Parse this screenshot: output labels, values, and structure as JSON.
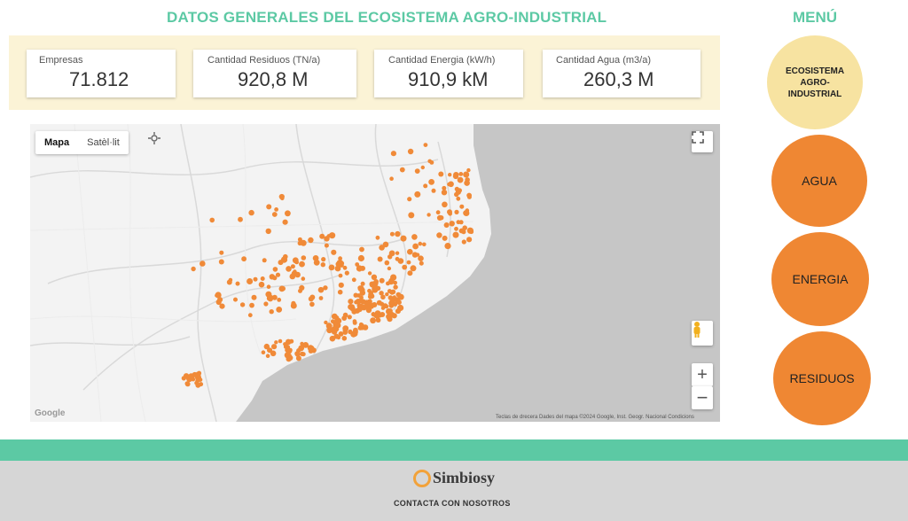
{
  "header": {
    "title": "DATOS GENERALES DEL ECOSISTEMA AGRO-INDUSTRIAL",
    "menu_title": "MENÚ"
  },
  "kpis": [
    {
      "label": "Empresas",
      "value": "71.812"
    },
    {
      "label": "Cantidad Residuos (TN/a)",
      "value": "920,8 M"
    },
    {
      "label": "Cantidad Energia (kW/h)",
      "value": "910,9 kM"
    },
    {
      "label": "Cantidad Agua (m3/a)",
      "value": "260,3 M"
    }
  ],
  "map": {
    "type_active": "Mapa",
    "type_inactive": "Satèl·lit",
    "google": "Google",
    "footer": "Teclas de drecera     Dades del mapa ©2024 Google, Inst. Geogr. Nacional     Condicions",
    "marker_color": "#f08a38",
    "icons": [
      "fullscreen-icon",
      "pegman-icon",
      "zoom-in-icon",
      "zoom-out-icon",
      "location-icon"
    ]
  },
  "menu": {
    "items": [
      {
        "label": "ECOSISTEMA AGRO-INDUSTRIAL",
        "color": "#f7e3a1"
      },
      {
        "label": "AGUA",
        "color": "#ef8733"
      },
      {
        "label": "ENERGIA",
        "color": "#ef8733"
      },
      {
        "label": "RESIDUOS",
        "color": "#ef8733"
      }
    ]
  },
  "footer": {
    "logo": "Simbiosy",
    "contact": "CONTACTA CON NOSOTROS"
  },
  "colors": {
    "accent": "#5cc9a4",
    "orange": "#ef8733",
    "kpi_band": "#fbf3d6"
  }
}
